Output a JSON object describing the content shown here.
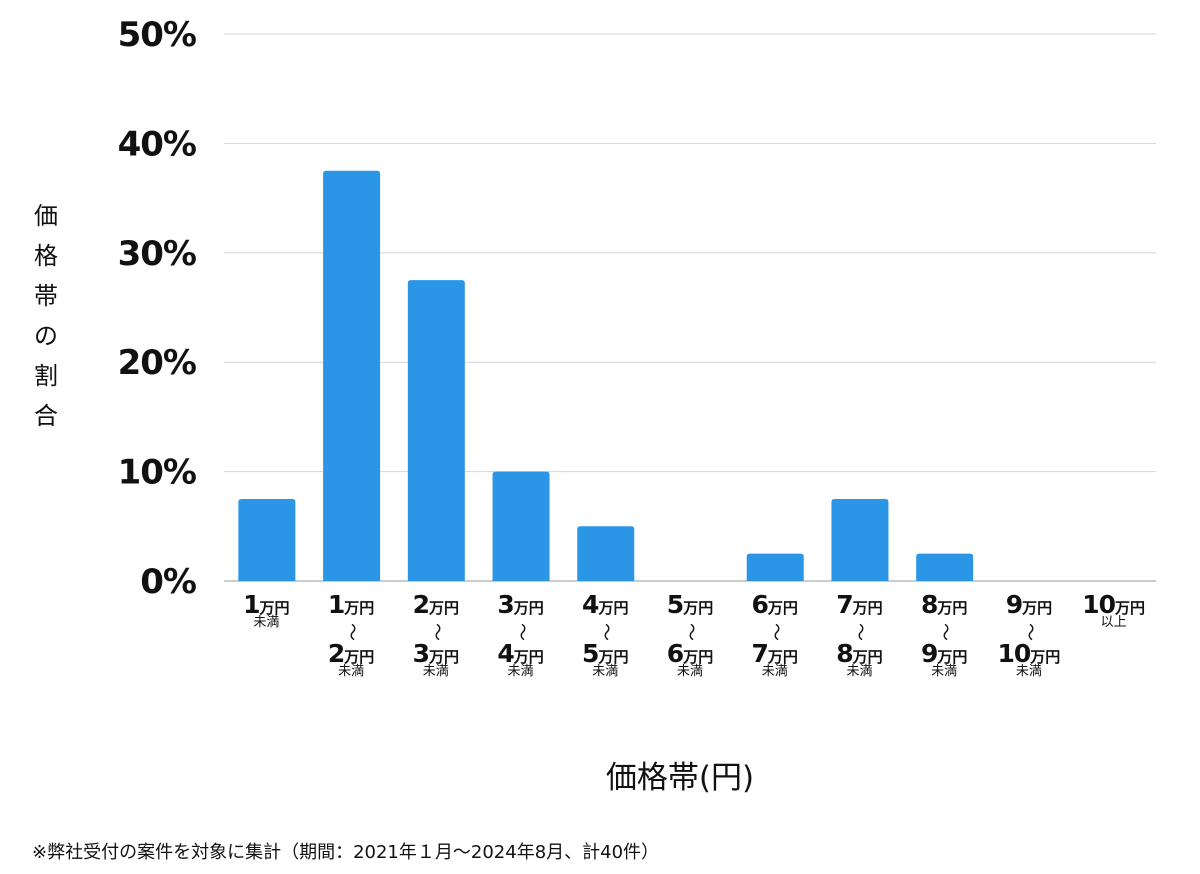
{
  "chart_data": {
    "type": "bar",
    "title": "",
    "xlabel": "価格帯(円)",
    "ylabel": "価格帯の割合",
    "ylim": [
      0,
      50
    ],
    "yticks": [
      "0%",
      "10%",
      "20%",
      "30%",
      "40%",
      "50%"
    ],
    "ytick_values": [
      0,
      10,
      20,
      30,
      40,
      50
    ],
    "grid": true,
    "color": "#2b95e6",
    "categories": [
      {
        "a": "1",
        "a_unit": "万円",
        "note_a": "未満"
      },
      {
        "a": "1",
        "a_unit": "万円",
        "tilde": "〜",
        "b": "2",
        "b_unit": "万円",
        "note": "未満"
      },
      {
        "a": "2",
        "a_unit": "万円",
        "tilde": "〜",
        "b": "3",
        "b_unit": "万円",
        "note": "未満"
      },
      {
        "a": "3",
        "a_unit": "万円",
        "tilde": "〜",
        "b": "4",
        "b_unit": "万円",
        "note": "未満"
      },
      {
        "a": "4",
        "a_unit": "万円",
        "tilde": "〜",
        "b": "5",
        "b_unit": "万円",
        "note": "未満"
      },
      {
        "a": "5",
        "a_unit": "万円",
        "tilde": "〜",
        "b": "6",
        "b_unit": "万円",
        "note": "未満"
      },
      {
        "a": "6",
        "a_unit": "万円",
        "tilde": "〜",
        "b": "7",
        "b_unit": "万円",
        "note": "未満"
      },
      {
        "a": "7",
        "a_unit": "万円",
        "tilde": "〜",
        "b": "8",
        "b_unit": "万円",
        "note": "未満"
      },
      {
        "a": "8",
        "a_unit": "万円",
        "tilde": "〜",
        "b": "9",
        "b_unit": "万円",
        "note": "未満"
      },
      {
        "a": "9",
        "a_unit": "万円",
        "tilde": "〜",
        "b": "10",
        "b_unit": "万円",
        "note": "未満"
      },
      {
        "a": "10",
        "a_unit": "万円",
        "note_a": "以上"
      }
    ],
    "values": [
      7.5,
      37.5,
      27.5,
      10,
      5,
      0,
      2.5,
      7.5,
      2.5,
      0,
      0
    ]
  },
  "footnote": "※弊社受付の案件を対象に集計（期間：2021年１月〜2024年8月、計40件）"
}
